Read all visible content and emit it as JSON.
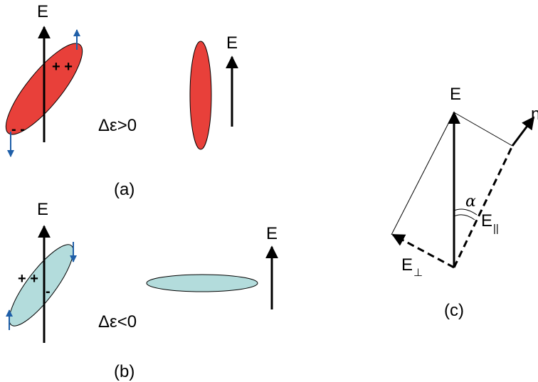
{
  "colors": {
    "positive_ellipse": "#e8403a",
    "negative_ellipse": "#b3dcdc",
    "small_arrow": "#1f5fa8",
    "axis": "#000000"
  },
  "panel_a": {
    "caption": "(a)",
    "e_tilted": "E",
    "e_aligned": "E",
    "delta_text": "Δε>0",
    "plus_charges": "+ +",
    "minus_charges": "- -"
  },
  "panel_b": {
    "caption": "(b)",
    "e_tilted": "E",
    "e_aligned": "E",
    "delta_text": "Δε<0",
    "plus_charges": "+ +",
    "minus_charges": "-"
  },
  "panel_c": {
    "caption": "(c)",
    "e_label": "E",
    "n_label": "n",
    "alpha_label": "α",
    "e_parallel_base": "E",
    "e_parallel_sub": "||",
    "e_perp_base": "E",
    "e_perp_sub": "⊥"
  }
}
